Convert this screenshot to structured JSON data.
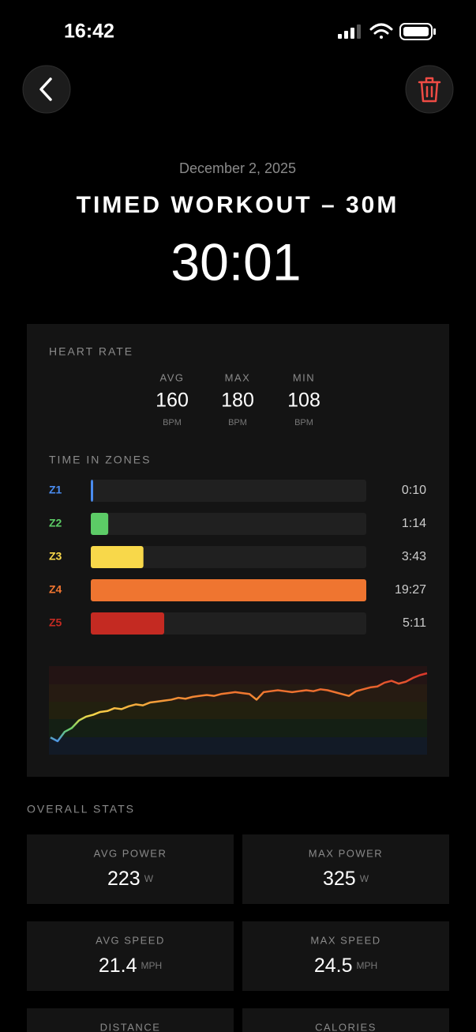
{
  "status_bar": {
    "time": "16:42"
  },
  "header": {
    "date": "December 2, 2025",
    "title": "TIMED WORKOUT – 30M",
    "duration": "30:01"
  },
  "heart_rate": {
    "title": "HEART RATE",
    "stats": [
      {
        "label": "AVG",
        "value": 160,
        "unit": "BPM"
      },
      {
        "label": "MAX",
        "value": 180,
        "unit": "BPM"
      },
      {
        "label": "MIN",
        "value": 108,
        "unit": "BPM"
      }
    ]
  },
  "zones": {
    "title": "TIME IN ZONES",
    "rows": [
      {
        "label": "Z1",
        "time": "0:10",
        "color": "#4a8cf0"
      },
      {
        "label": "Z2",
        "time": "1:14",
        "color": "#5ccb66"
      },
      {
        "label": "Z3",
        "time": "3:43",
        "color": "#f8d84a"
      },
      {
        "label": "Z4",
        "time": "19:27",
        "color": "#ef7530"
      },
      {
        "label": "Z5",
        "time": "5:11",
        "color": "#c42a22"
      }
    ]
  },
  "graph": {
    "values": [
      112,
      108,
      118,
      122,
      130,
      134,
      136,
      139,
      140,
      143,
      142,
      145,
      147,
      146,
      149,
      150,
      151,
      152,
      154,
      153,
      155,
      156,
      157,
      156,
      158,
      159,
      160,
      159,
      158,
      152,
      160,
      161,
      162,
      161,
      160,
      161,
      162,
      161,
      163,
      162,
      160,
      158,
      156,
      161,
      163,
      165,
      166,
      170,
      172,
      169,
      171,
      175,
      178,
      180
    ]
  },
  "overall_stats": {
    "title": "OVERALL STATS",
    "tiles": [
      {
        "label": "AVG POWER",
        "value": 223,
        "unit": "W"
      },
      {
        "label": "MAX POWER",
        "value": 325,
        "unit": "W"
      },
      {
        "label": "AVG SPEED",
        "value": 21.4,
        "unit": "MPH"
      },
      {
        "label": "MAX SPEED",
        "value": 24.5,
        "unit": "MPH"
      },
      {
        "label": "DISTANCE"
      },
      {
        "label": "CALORIES"
      }
    ]
  }
}
